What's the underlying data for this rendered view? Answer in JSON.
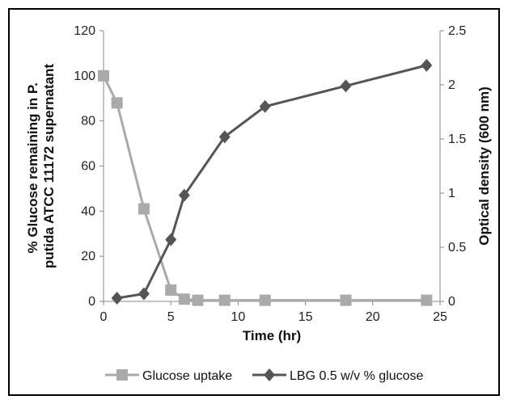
{
  "chart_data": {
    "type": "line",
    "xlabel": "Time (hr)",
    "ylabel_left": "% Glucose remaining in P. putida ATCC 11172 supernatant",
    "ylabel_left_lines": [
      "% Glucose remaining in P.",
      "putida ATCC 11172 supernatant"
    ],
    "ylabel_right": "Optical density (600 nm)",
    "xlim": [
      0,
      25
    ],
    "ylim_left": [
      0,
      120
    ],
    "ylim_right": [
      0,
      2.5
    ],
    "x_ticks": [
      "0",
      "5",
      "10",
      "15",
      "20",
      "25"
    ],
    "y_left_ticks": [
      "0",
      "20",
      "40",
      "60",
      "80",
      "100",
      "120"
    ],
    "y_right_ticks": [
      "0",
      "0.5",
      "1",
      "1.5",
      "2",
      "2.5"
    ],
    "grid": false,
    "legend_position": "bottom",
    "series": [
      {
        "name": "Glucose uptake",
        "axis": "left",
        "color": "#aaaaaa",
        "marker": "square",
        "x": [
          0,
          1,
          3,
          5,
          6,
          7,
          9,
          12,
          18,
          24
        ],
        "y": [
          100,
          88,
          41,
          5,
          1,
          0.5,
          0.5,
          0.5,
          0.5,
          0.5
        ]
      },
      {
        "name": "LBG 0.5 w/v % glucose",
        "axis": "right",
        "color": "#555555",
        "marker": "diamond",
        "x": [
          1,
          3,
          5,
          6,
          9,
          12,
          18,
          24
        ],
        "y": [
          0.03,
          0.07,
          0.57,
          0.98,
          1.52,
          1.8,
          1.99,
          2.18
        ]
      }
    ]
  }
}
